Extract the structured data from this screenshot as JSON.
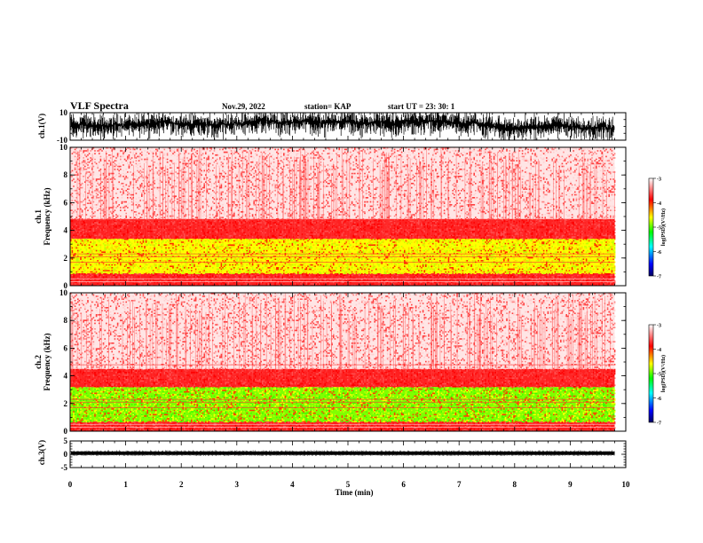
{
  "header": {
    "title": "VLF Spectra",
    "date": "Nov.29, 2022",
    "station": "station= KAP",
    "start": "start  UT  =   23: 30: 1"
  },
  "chart_data": [
    {
      "type": "line",
      "panel": "ch1-waveform",
      "ylabel": "ch.1(V)",
      "ylim": [
        -10,
        10
      ],
      "yticks": [
        "10",
        "-10"
      ],
      "xlim": [
        0,
        10
      ],
      "data_end_min": 9.8,
      "series_color": "#000000"
    },
    {
      "type": "heatmap",
      "panel": "ch1-spectrogram",
      "ylabel": "ch.1\nFrequency (kHz)",
      "ylabel_top": "ch.1",
      "ylabel_bottom": "Frequency (kHz)",
      "ylim": [
        0,
        10
      ],
      "yticks": [
        "0",
        "2",
        "4",
        "6",
        "8",
        "10"
      ],
      "xlim": [
        0,
        10
      ],
      "data_end_min": 9.8,
      "bands_khz": [
        {
          "from": 0.0,
          "to": 0.9,
          "level": "red"
        },
        {
          "from": 0.9,
          "to": 3.4,
          "level": "yellow-green"
        },
        {
          "from": 3.4,
          "to": 4.8,
          "level": "red"
        },
        {
          "from": 4.8,
          "to": 10.0,
          "level": "light-red"
        }
      ],
      "colorbar": {
        "label": "log(PSD)(V²/Hz)",
        "range": [
          -7,
          -3
        ],
        "ticks": [
          "-3",
          "-4",
          "-5",
          "-6",
          "-7"
        ]
      }
    },
    {
      "type": "heatmap",
      "panel": "ch2-spectrogram",
      "ylabel": "ch.2\nFrequency (kHz)",
      "ylabel_top": "ch.2",
      "ylabel_bottom": "Frequency (kHz)",
      "ylim": [
        0,
        10
      ],
      "yticks": [
        "0",
        "2",
        "4",
        "6",
        "8",
        "10"
      ],
      "xlim": [
        0,
        10
      ],
      "data_end_min": 9.8,
      "bands_khz": [
        {
          "from": 0.0,
          "to": 0.7,
          "level": "red"
        },
        {
          "from": 0.7,
          "to": 3.2,
          "level": "green-yellow"
        },
        {
          "from": 3.2,
          "to": 4.5,
          "level": "red"
        },
        {
          "from": 4.5,
          "to": 10.0,
          "level": "light-red"
        }
      ],
      "colorbar": {
        "label": "log(PSD)(V²/Hz)",
        "range": [
          -7,
          -3
        ],
        "ticks": [
          "-3",
          "-4",
          "-5",
          "-6",
          "-7"
        ]
      }
    },
    {
      "type": "line",
      "panel": "ch3-waveform",
      "ylabel": "ch.3(V)",
      "ylim": [
        -5,
        5
      ],
      "yticks": [
        "5",
        "0",
        "-5"
      ],
      "xlim": [
        0,
        10
      ],
      "data_end_min": 9.8,
      "series_color": "#000000"
    }
  ],
  "xaxis": {
    "label": "Time (min)",
    "ticks": [
      "0",
      "1",
      "2",
      "3",
      "4",
      "5",
      "6",
      "7",
      "8",
      "9",
      "10"
    ]
  },
  "colors": {
    "colormap": [
      "#000080",
      "#0000ff",
      "#00ffff",
      "#00ff00",
      "#ffff00",
      "#ff0000",
      "#ffffff"
    ]
  }
}
